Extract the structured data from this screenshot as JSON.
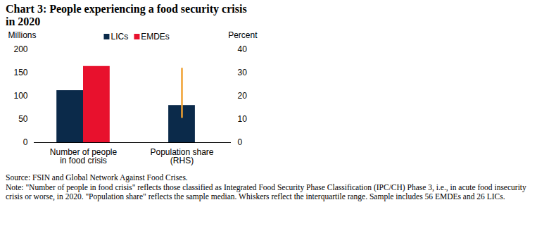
{
  "chart_data": {
    "type": "bar",
    "title": "Chart 3: People experiencing a food security crisis in 2020",
    "y_label": "Millions",
    "y2_label": "Percent",
    "categories": [
      "Number of people in food crisis",
      "Population share (RHS)"
    ],
    "series": [
      {
        "name": "LICs",
        "color": "#0b2a4a",
        "values": [
          112,
          null
        ]
      },
      {
        "name": "EMDEs",
        "color": "#e8112d",
        "values": [
          164,
          null
        ]
      },
      {
        "name": "LICs",
        "color": "#0b2a4a",
        "axis": "y2",
        "values": [
          null,
          16
        ],
        "whisker_low": [
          null,
          10.5
        ],
        "whisker_high": [
          null,
          32
        ]
      }
    ],
    "ylim": [
      0,
      200
    ],
    "yticks": [
      0,
      50,
      100,
      150,
      200
    ],
    "y2lim": [
      0,
      40
    ],
    "y2ticks": [
      0,
      10,
      20,
      30,
      40
    ],
    "legend": "top",
    "grid": false,
    "source": "Source: FSIN and Global Network Against Food Crises.",
    "note": "Note: \"Number of people in food crisis\" reflects those classified as Integrated Food Security Phase Classification (IPC/CH) Phase 3, i.e., in acute food insecurity crisis or worse, in 2020. \"Population share\" reflects the sample median. Whiskers reflect the interquartile range. Sample includes 56 EMDEs and 26 LICs."
  }
}
